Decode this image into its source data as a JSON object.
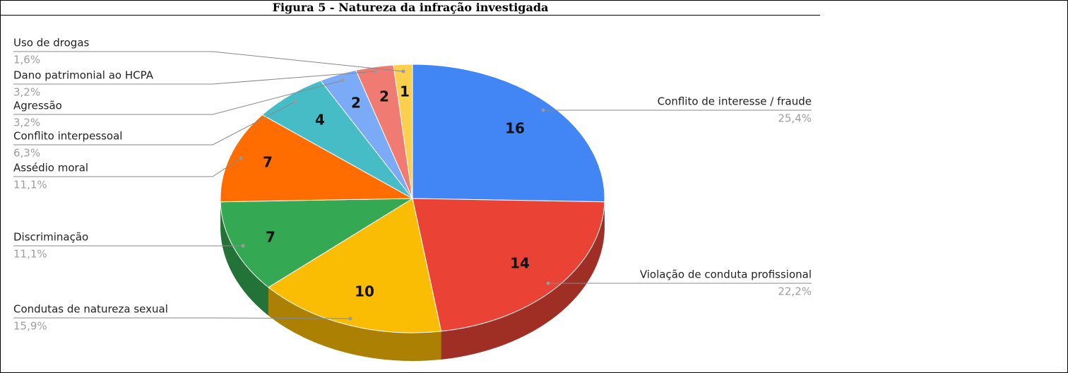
{
  "chart_data": {
    "type": "pie3d",
    "title": "Figura 5 - Natureza da infração investigada",
    "categories": [
      "Conflito de interesse / fraude",
      "Violação de conduta profissional",
      "Condutas de natureza sexual",
      "Discriminação",
      "Assédio moral",
      "Conflito interpessoal",
      "Agressão",
      "Dano patrimonial ao HCPA",
      "Uso de drogas"
    ],
    "values": [
      16,
      14,
      10,
      7,
      7,
      4,
      2,
      2,
      1
    ],
    "percentages": [
      25.4,
      22.2,
      15.9,
      11.1,
      11.1,
      6.3,
      3.2,
      3.2,
      1.6
    ],
    "percentage_labels": [
      "25,4%",
      "22,2%",
      "15,9%",
      "11,1%",
      "11,1%",
      "6,3%",
      "3,2%",
      "3,2%",
      "1,6%"
    ],
    "colors": [
      "#4285f4",
      "#ea4335",
      "#fbbc04",
      "#34a853",
      "#ff6d01",
      "#46bdc6",
      "#7baaf7",
      "#f07b72",
      "#fcd04f"
    ]
  }
}
